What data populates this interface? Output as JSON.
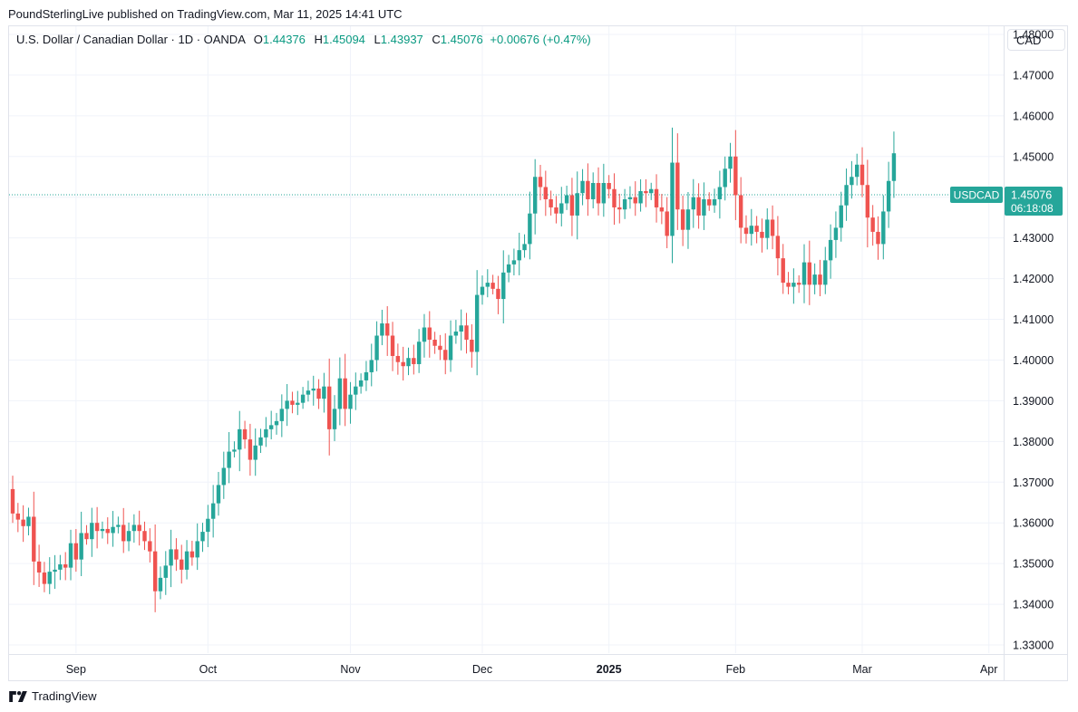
{
  "publisher_line": "PoundSterlingLive published on TradingView.com, Mar 11, 2025 14:41 UTC",
  "legend": {
    "symbol": "U.S. Dollar / Canadian Dollar · 1D · OANDA",
    "o_label": "O",
    "o_value": "1.44376",
    "h_label": "H",
    "h_value": "1.45094",
    "l_label": "L",
    "l_value": "1.43937",
    "c_label": "C",
    "c_value": "1.45076",
    "change": "+0.00676 (+0.47%)"
  },
  "currency_button": "CAD",
  "price_tag": {
    "symbol": "USDCAD",
    "price": "1.45076",
    "countdown": "06:18:08"
  },
  "brand": "TradingView",
  "colors": {
    "up": "#26a69a",
    "down": "#ef5350",
    "grid": "#f0f3fa",
    "axis_text": "#131722"
  },
  "chart_data": {
    "type": "candlestick",
    "instrument": "USDCAD",
    "ylim": [
      1.328,
      1.482
    ],
    "last_price": 1.45076,
    "y_ticks": [
      "1.33000",
      "1.34000",
      "1.35000",
      "1.36000",
      "1.37000",
      "1.38000",
      "1.39000",
      "1.40000",
      "1.41000",
      "1.42000",
      "1.43000",
      "1.44000",
      "1.45000",
      "1.46000",
      "1.47000",
      "1.48000"
    ],
    "x_ticks": [
      {
        "label": "Sep",
        "index": 12,
        "bold": false
      },
      {
        "label": "Oct",
        "index": 37,
        "bold": false
      },
      {
        "label": "Nov",
        "index": 64,
        "bold": false
      },
      {
        "label": "Dec",
        "index": 89,
        "bold": false
      },
      {
        "label": "2025",
        "index": 113,
        "bold": true
      },
      {
        "label": "Feb",
        "index": 137,
        "bold": false
      },
      {
        "label": "Mar",
        "index": 161,
        "bold": false
      },
      {
        "label": "Apr",
        "index": 185,
        "bold": false
      }
    ],
    "close_start": 1.3683,
    "closes": [
      1.3623,
      1.3608,
      1.3592,
      1.3615,
      1.3505,
      1.3478,
      1.345,
      1.348,
      1.3485,
      1.3498,
      1.349,
      1.355,
      1.351,
      1.3575,
      1.356,
      1.36,
      1.358,
      1.3585,
      1.3575,
      1.359,
      1.3595,
      1.3555,
      1.358,
      1.3595,
      1.358,
      1.3555,
      1.353,
      1.3432,
      1.3465,
      1.3495,
      1.3535,
      1.351,
      1.3485,
      1.353,
      1.3515,
      1.3555,
      1.3578,
      1.361,
      1.3648,
      1.3693,
      1.3735,
      1.3775,
      1.378,
      1.383,
      1.3805,
      1.3755,
      1.379,
      1.381,
      1.383,
      1.384,
      1.385,
      1.388,
      1.39,
      1.389,
      1.3895,
      1.3915,
      1.3925,
      1.393,
      1.3905,
      1.3935,
      1.383,
      1.388,
      1.3955,
      1.388,
      1.3915,
      1.3935,
      1.395,
      1.397,
      1.4,
      1.406,
      1.409,
      1.406,
      1.401,
      1.3995,
      1.3985,
      1.4005,
      1.399,
      1.4045,
      1.408,
      1.405,
      1.4035,
      1.4025,
      1.4,
      1.406,
      1.407,
      1.4085,
      1.405,
      1.402,
      1.416,
      1.418,
      1.419,
      1.4175,
      1.415,
      1.4215,
      1.4235,
      1.4245,
      1.427,
      1.4285,
      1.436,
      1.445,
      1.4425,
      1.4395,
      1.4375,
      1.436,
      1.4385,
      1.4405,
      1.4355,
      1.441,
      1.444,
      1.4395,
      1.4435,
      1.4385,
      1.4435,
      1.442,
      1.4375,
      1.437,
      1.4395,
      1.44,
      1.4385,
      1.4415,
      1.441,
      1.442,
      1.4375,
      1.4365,
      1.4305,
      1.4485,
      1.437,
      1.432,
      1.437,
      1.44,
      1.4355,
      1.4395,
      1.438,
      1.4395,
      1.4425,
      1.447,
      1.45,
      1.4405,
      1.4325,
      1.431,
      1.433,
      1.4315,
      1.43,
      1.4345,
      1.4305,
      1.425,
      1.419,
      1.418,
      1.419,
      1.4185,
      1.424,
      1.4185,
      1.421,
      1.4185,
      1.4245,
      1.4295,
      1.4325,
      1.438,
      1.443,
      1.445,
      1.448,
      1.443,
      1.435,
      1.4315,
      1.4285,
      1.4365,
      1.444,
      1.4508
    ]
  }
}
